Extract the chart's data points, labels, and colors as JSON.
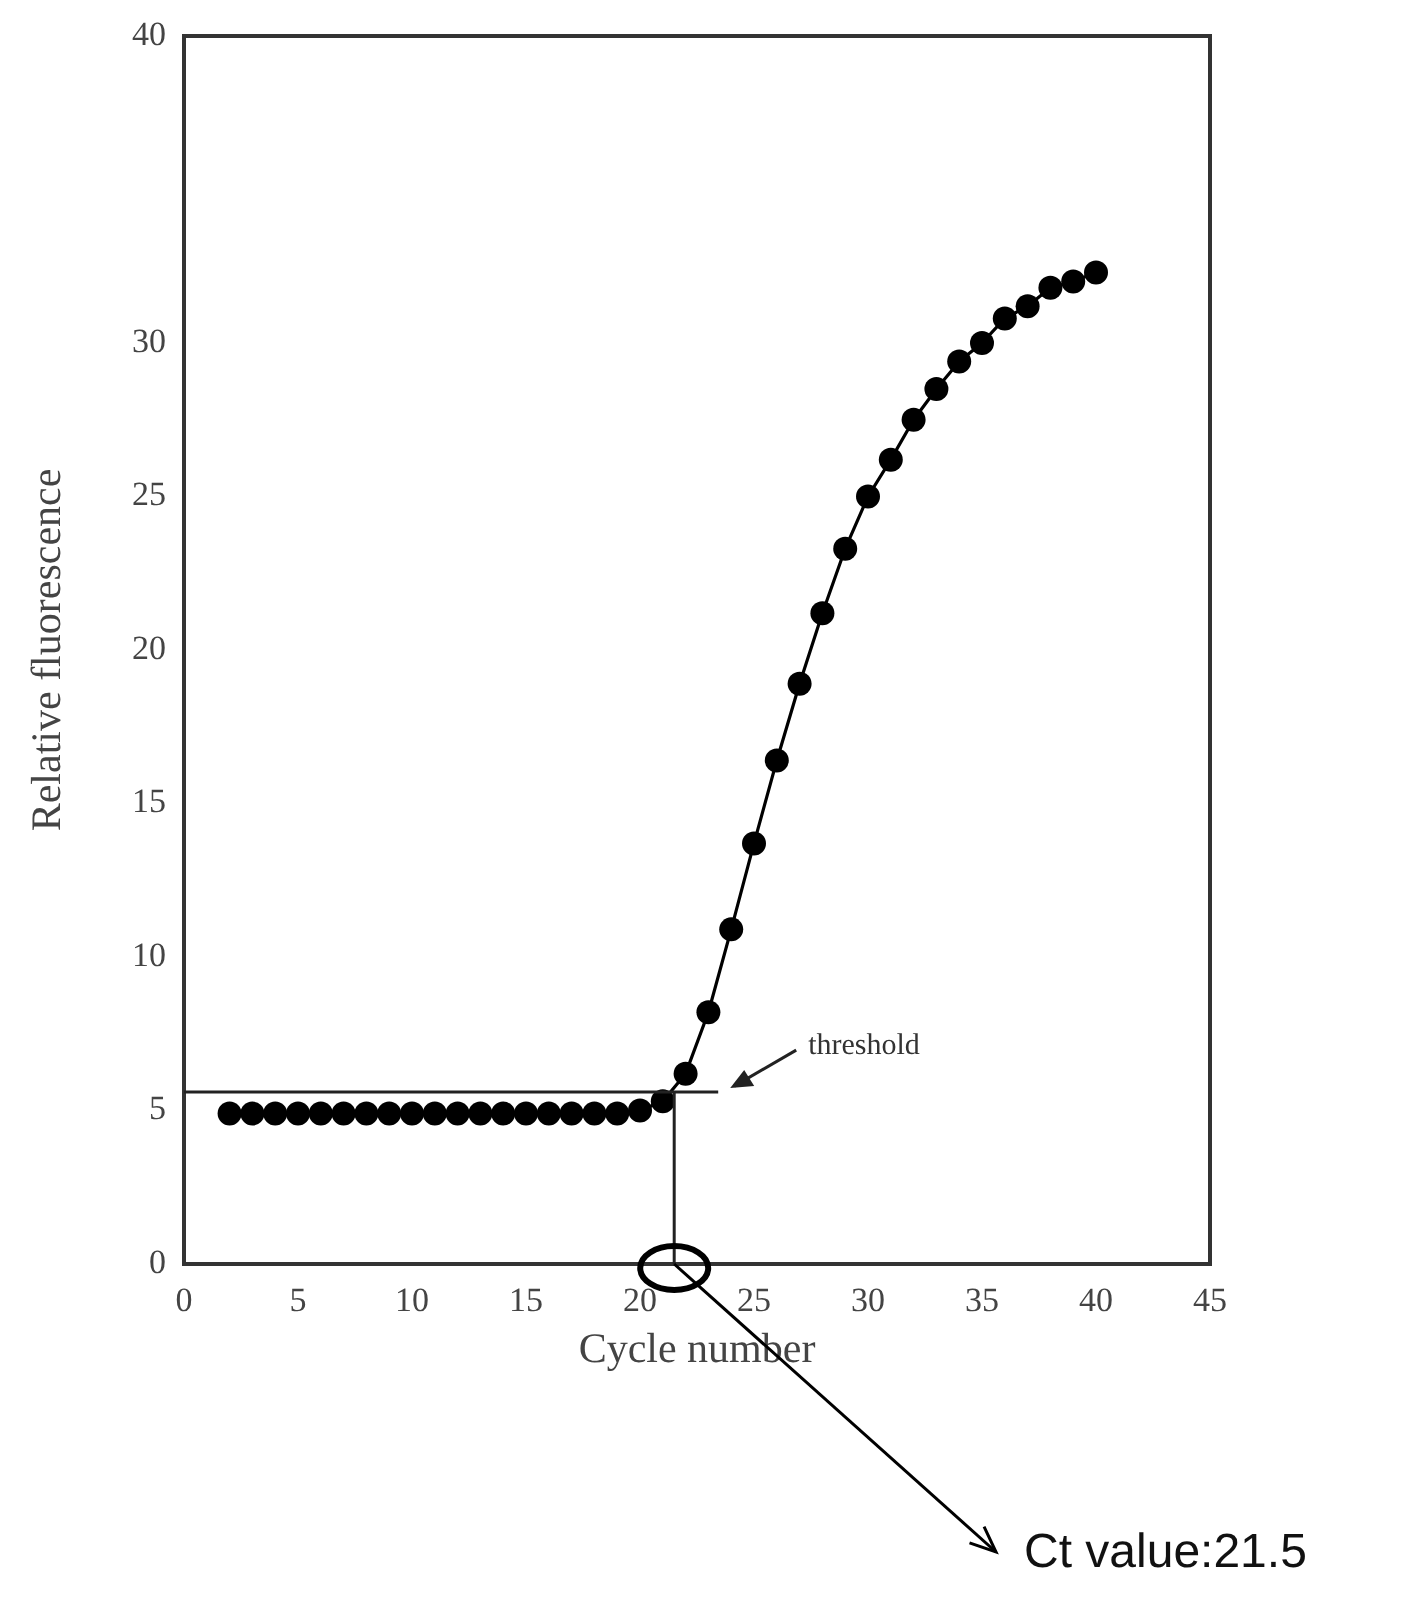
{
  "chart_data": {
    "type": "line",
    "xlabel": "Cycle number",
    "ylabel": "Relative fluorescence",
    "x": [
      2,
      3,
      4,
      5,
      6,
      7,
      8,
      9,
      10,
      11,
      12,
      13,
      14,
      15,
      16,
      17,
      18,
      19,
      20,
      21,
      22,
      23,
      24,
      25,
      26,
      27,
      28,
      29,
      30,
      31,
      32,
      33,
      34,
      35,
      36,
      37,
      38,
      39,
      40
    ],
    "series": [
      {
        "color": "#000000",
        "values": [
          4.9,
          4.9,
          4.9,
          4.9,
          4.9,
          4.9,
          4.9,
          4.9,
          4.9,
          4.9,
          4.9,
          4.9,
          4.9,
          4.9,
          4.9,
          4.9,
          4.9,
          4.9,
          5.0,
          5.3,
          6.2,
          8.2,
          10.9,
          13.7,
          16.4,
          18.9,
          21.2,
          23.3,
          25.0,
          26.2,
          27.5,
          28.5,
          29.4,
          30.0,
          30.8,
          31.2,
          31.8,
          32.0,
          32.3
        ]
      }
    ],
    "xlim": [
      0,
      45
    ],
    "xticks": [
      0,
      5,
      10,
      15,
      20,
      25,
      30,
      35,
      40,
      45
    ],
    "ylim": [
      0,
      40
    ],
    "yticks": [
      0,
      5,
      10,
      15,
      20,
      25,
      30,
      40
    ],
    "ref_lines": [
      {
        "axis": "y",
        "value": 5.6,
        "label": "threshold"
      },
      {
        "axis": "x",
        "value": 21.5
      }
    ],
    "annotations": [
      {
        "text": "Ct value:21.5",
        "x": 21.5,
        "y": 0
      }
    ],
    "marker": "circle",
    "line_style": "solid",
    "grid": false,
    "legend": false
  }
}
